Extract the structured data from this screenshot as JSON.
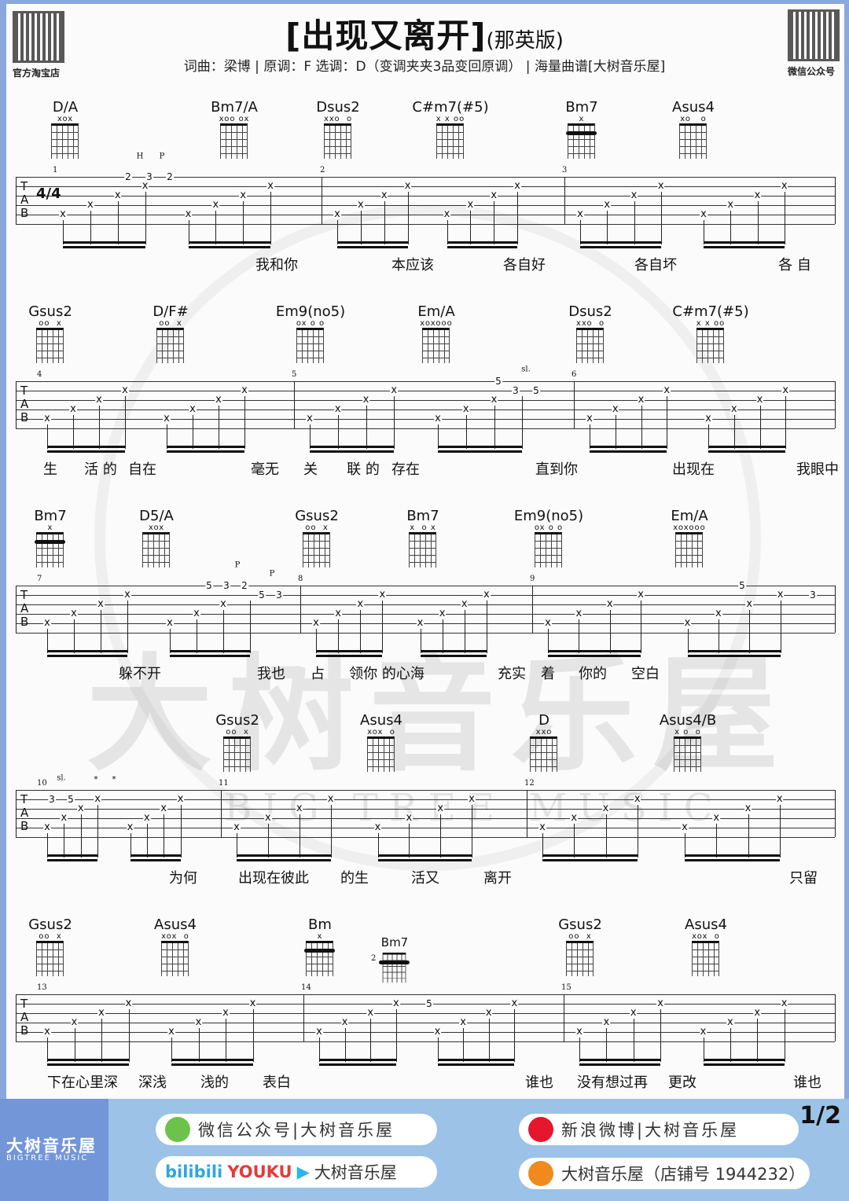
{
  "header": {
    "title": "[出现又离开]",
    "title_suffix": "(那英版)",
    "subtitle": "词曲：梁博 | 原调：F  选调：D（变调夹夹3品变回原调） | 海量曲谱[大树音乐屋]",
    "qr_left_caption": "官方淘宝店",
    "qr_right_caption": "微信公众号"
  },
  "watermark": {
    "text": "大树音乐屋",
    "latin": "BIG TREE MUSIC"
  },
  "time_signature": "4/4",
  "tab_letters": [
    "T",
    "A",
    "B"
  ],
  "systems": [
    {
      "measures": [
        "1",
        "2",
        "3"
      ],
      "chords": [
        {
          "name": "D/A",
          "marks": "xox"
        },
        {
          "name": "Bm7/A",
          "marks": "xoo ox"
        },
        {
          "name": "Dsus2",
          "marks": "xxo  o"
        },
        {
          "name": "C#m7(#5)",
          "marks": "x x oo"
        },
        {
          "name": "Bm7",
          "marks": "x",
          "barre": true
        },
        {
          "name": "Asus4",
          "marks": "xo   o"
        }
      ],
      "frets": [
        "2",
        "3",
        "2",
        "H",
        "P"
      ],
      "lyrics": [
        "我和你",
        "本应该",
        "各自好",
        "各自坏",
        "各 自"
      ]
    },
    {
      "measures": [
        "4",
        "5",
        "6"
      ],
      "chords": [
        {
          "name": "Gsus2",
          "marks": "oo  x"
        },
        {
          "name": "D/F#",
          "marks": "oo  x"
        },
        {
          "name": "Em9(no5)",
          "marks": "ox o o"
        },
        {
          "name": "Em/A",
          "marks": "xoxooo"
        },
        {
          "name": "Dsus2",
          "marks": "xxo  o"
        },
        {
          "name": "C#m7(#5)",
          "marks": "x x oo"
        }
      ],
      "frets": [
        "5",
        "3",
        "5",
        "sl."
      ],
      "lyrics": [
        "生",
        "活 的",
        "自在",
        "毫无",
        "关",
        "联 的",
        "存在",
        "直到你",
        "出现在",
        "我眼中"
      ]
    },
    {
      "measures": [
        "7",
        "8",
        "9"
      ],
      "chords": [
        {
          "name": "Bm7",
          "marks": "x",
          "barre": true
        },
        {
          "name": "D5/A",
          "marks": "xox"
        },
        {
          "name": "Gsus2",
          "marks": "oo  x"
        },
        {
          "name": "Bm7",
          "marks": "x  o x"
        },
        {
          "name": "Em9(no5)",
          "marks": "ox o o"
        },
        {
          "name": "Em/A",
          "marks": "xoxooo"
        }
      ],
      "frets": [
        "5",
        "3",
        "2",
        "5",
        "3",
        "P",
        "P",
        "5",
        "3"
      ],
      "lyrics": [
        "躲不开",
        "我也",
        "占",
        "领你 的心海",
        "充实",
        "着",
        "你的",
        "空白"
      ]
    },
    {
      "measures": [
        "10",
        "11",
        "12"
      ],
      "chords": [
        {
          "name": "Gsus2",
          "marks": "oo  x"
        },
        {
          "name": "Asus4",
          "marks": "xox  o"
        },
        {
          "name": "D",
          "marks": "xxo"
        },
        {
          "name": "Asus4/B",
          "marks": "x o  o"
        }
      ],
      "frets": [
        "3",
        "5",
        "sl.",
        "*",
        "*"
      ],
      "lyrics": [
        "为何",
        "出现在彼此",
        "的生",
        "活又",
        "离开",
        "只留"
      ]
    },
    {
      "measures": [
        "13",
        "14",
        "15"
      ],
      "chords": [
        {
          "name": "Gsus2",
          "marks": "oo  x"
        },
        {
          "name": "Asus4",
          "marks": "xox  o"
        },
        {
          "name": "Bm",
          "marks": "x",
          "barre": true
        },
        {
          "name": "Bm7",
          "marks": "",
          "barre": true,
          "position": "2"
        },
        {
          "name": "Gsus2",
          "marks": "oo  x"
        },
        {
          "name": "Asus4",
          "marks": "xox  o"
        }
      ],
      "frets": [
        "5"
      ],
      "lyrics": [
        "下在心里深",
        "深浅",
        "浅的",
        "表白",
        "谁也",
        "没有想过再",
        "更改",
        "谁也"
      ]
    }
  ],
  "footer": {
    "brand": "大树音乐屋",
    "brand_latin": "BIGTREE MUSIC",
    "wechat": "微信公众号|大树音乐屋",
    "weibo": "新浪微博|大树音乐屋",
    "video_sites": [
      "bilibili",
      "YOUKU"
    ],
    "video": "大树音乐屋",
    "taobao": "大树音乐屋（店铺号 1944232）",
    "page": "1/2"
  },
  "colors": {
    "frame": "#8aa8dc",
    "footer": "#9cc2e8",
    "footer_brand": "#7396d8"
  }
}
